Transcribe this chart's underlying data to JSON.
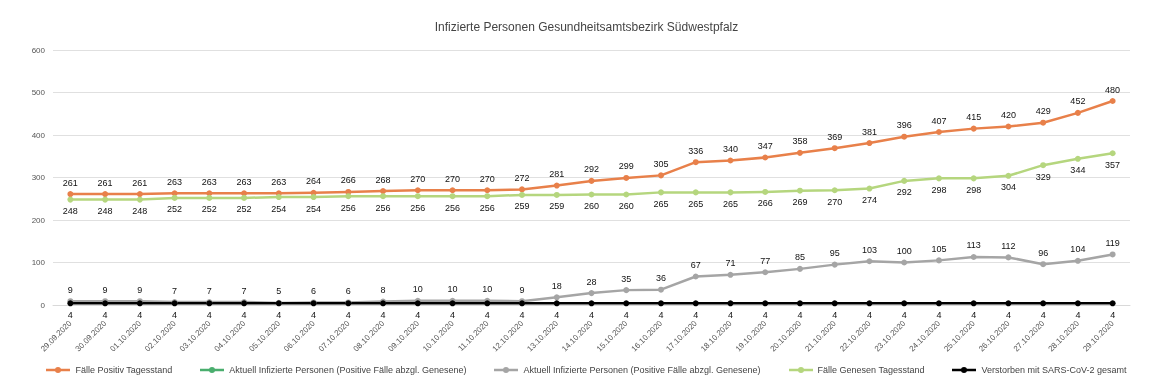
{
  "chart_data": {
    "type": "line",
    "title": "Infizierte Personen Gesundheitsamtsbezirk Südwestpfalz",
    "categories": [
      "29.09.2020",
      "30.09.2020",
      "01.10.2020",
      "02.10.2020",
      "03.10.2020",
      "04.10.2020",
      "05.10.2020",
      "06.10.2020",
      "07.10.2020",
      "08.10.2020",
      "09.10.2020",
      "10.10.2020",
      "11.10.2020",
      "12.10.2020",
      "13.10.2020",
      "14.10.2020",
      "15.10.2020",
      "16.10.2020",
      "17.10.2020",
      "18.10.2020",
      "19.10.2020",
      "20.10.2020",
      "21.10.2020",
      "22.10.2020",
      "23.10.2020",
      "24.10.2020",
      "25.10.2020",
      "26.10.2020",
      "27.10.2020",
      "28.10.2020",
      "29.10.2020"
    ],
    "series": [
      {
        "name": "Fälle Positiv Tagesstand",
        "color": "#e8804a",
        "values": [
          261,
          261,
          261,
          263,
          263,
          263,
          263,
          264,
          266,
          268,
          270,
          270,
          270,
          272,
          281,
          292,
          299,
          305,
          336,
          340,
          347,
          358,
          369,
          381,
          396,
          407,
          415,
          420,
          429,
          452,
          480
        ]
      },
      {
        "name": "Aktuell Infizierte Personen (Positive Fälle abzgl. Genesene)",
        "color": "#4aae6e",
        "values": [
          null,
          null,
          null,
          null,
          null,
          null,
          null,
          null,
          null,
          null,
          null,
          null,
          null,
          null,
          null,
          null,
          null,
          null,
          null,
          null,
          null,
          null,
          null,
          null,
          null,
          null,
          null,
          null,
          null,
          null,
          null
        ]
      },
      {
        "name": "Aktuell Infizierte Personen (Positive Fälle abzgl. Genesene)",
        "color": "#a5a5a5",
        "values": [
          9,
          9,
          9,
          7,
          7,
          7,
          5,
          6,
          6,
          8,
          10,
          10,
          10,
          9,
          18,
          28,
          35,
          36,
          67,
          71,
          77,
          85,
          95,
          103,
          100,
          105,
          113,
          112,
          96,
          104,
          119
        ]
      },
      {
        "name": "Fälle Genesen Tagesstand",
        "color": "#b5d67e",
        "values": [
          248,
          248,
          248,
          252,
          252,
          252,
          254,
          254,
          256,
          256,
          256,
          256,
          256,
          259,
          259,
          260,
          260,
          265,
          265,
          265,
          266,
          269,
          270,
          274,
          292,
          298,
          298,
          304,
          329,
          344,
          357
        ]
      },
      {
        "name": "Verstorben mit SARS-CoV-2 gesamt",
        "color": "#000000",
        "values": [
          4,
          4,
          4,
          4,
          4,
          4,
          4,
          4,
          4,
          4,
          4,
          4,
          4,
          4,
          4,
          4,
          4,
          4,
          4,
          4,
          4,
          4,
          4,
          4,
          4,
          4,
          4,
          4,
          4,
          4,
          4
        ]
      }
    ],
    "ylim": [
      0,
      600
    ],
    "yticks": [
      0,
      100,
      200,
      300,
      400,
      500,
      600
    ],
    "grid": "y",
    "legend": "bottom",
    "marker": "circle",
    "line_style": "solid",
    "data_labels": true
  }
}
